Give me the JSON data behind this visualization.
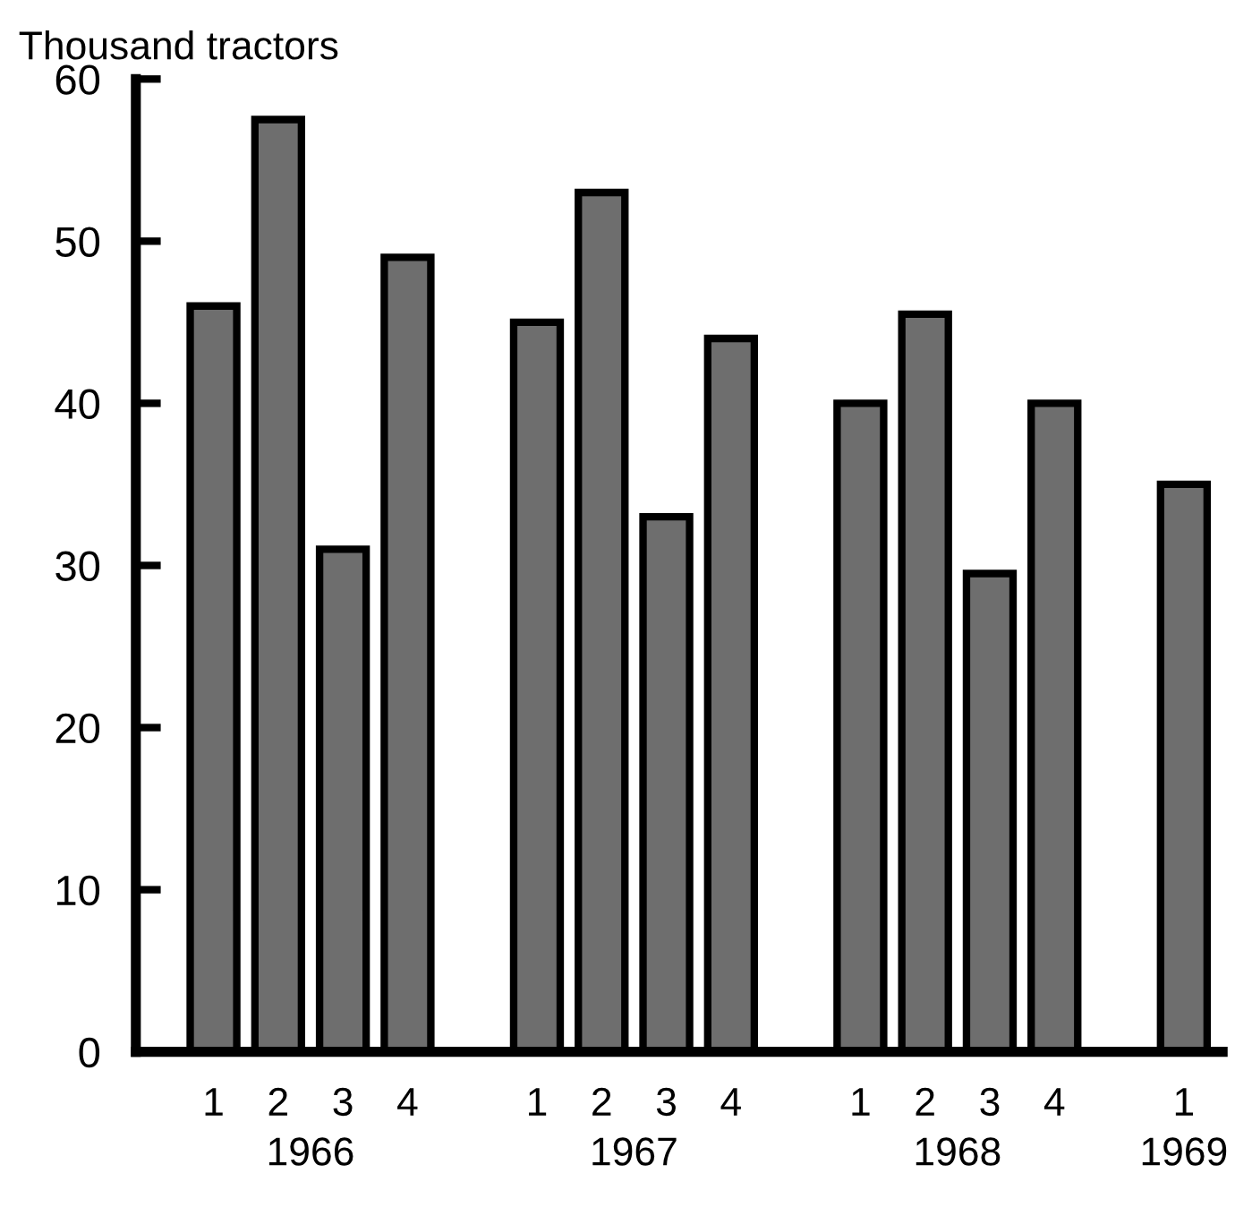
{
  "chart_data": {
    "type": "bar",
    "ylabel": "Thousand tractors",
    "categories": [
      "1",
      "2",
      "3",
      "4",
      null,
      "1",
      "2",
      "3",
      "4",
      null,
      "1",
      "2",
      "3",
      "4",
      null,
      "1"
    ],
    "values": [
      46,
      57.5,
      31,
      49,
      null,
      45,
      53,
      33,
      44,
      null,
      40,
      45.5,
      29.5,
      40,
      null,
      35
    ],
    "color": "#6e6e6e",
    "ylim": [
      0,
      60
    ],
    "yticks": [
      0,
      10,
      20,
      30,
      40,
      50,
      60
    ],
    "annotations": [
      "1966",
      "1967",
      "1968",
      "1969"
    ],
    "grid": false,
    "legend": false
  }
}
